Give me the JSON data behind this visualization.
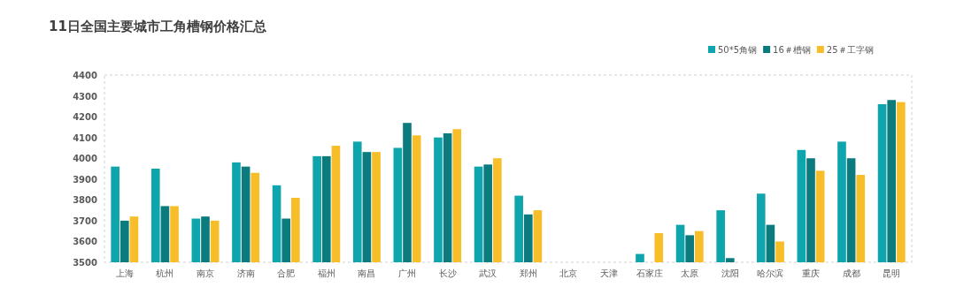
{
  "chart_data": {
    "type": "bar",
    "title": "11日全国主要城市工角槽钢价格汇总",
    "categories": [
      "上海",
      "杭州",
      "南京",
      "济南",
      "合肥",
      "福州",
      "南昌",
      "广州",
      "长沙",
      "武汉",
      "郑州",
      "北京",
      "天津",
      "石家庄",
      "太原",
      "沈阳",
      "哈尔滨",
      "重庆",
      "成都",
      "昆明"
    ],
    "series": [
      {
        "name": "50*5角钢",
        "color": "#0fa5ac",
        "values": [
          3960,
          3950,
          3710,
          3980,
          3870,
          4010,
          4080,
          4050,
          4100,
          3960,
          3820,
          null,
          null,
          3540,
          3680,
          3750,
          3830,
          4040,
          4080,
          4260
        ]
      },
      {
        "name": "16＃槽钢",
        "color": "#0b7b7e",
        "values": [
          3700,
          3770,
          3720,
          3960,
          3710,
          4010,
          4030,
          4170,
          4120,
          3970,
          3730,
          null,
          null,
          null,
          3630,
          3520,
          3680,
          4000,
          4000,
          4280
        ]
      },
      {
        "name": "25＃工字钢",
        "color": "#f8be2a",
        "values": [
          3720,
          3770,
          3700,
          3930,
          3810,
          4060,
          4030,
          4110,
          4140,
          4000,
          3750,
          null,
          null,
          3640,
          3650,
          null,
          3600,
          3940,
          3920,
          4270
        ]
      }
    ],
    "ylim": [
      3500,
      4400
    ],
    "yticks": [
      3500,
      3600,
      3700,
      3800,
      3900,
      4000,
      4100,
      4200,
      4300,
      4400
    ],
    "legend": "top right"
  }
}
